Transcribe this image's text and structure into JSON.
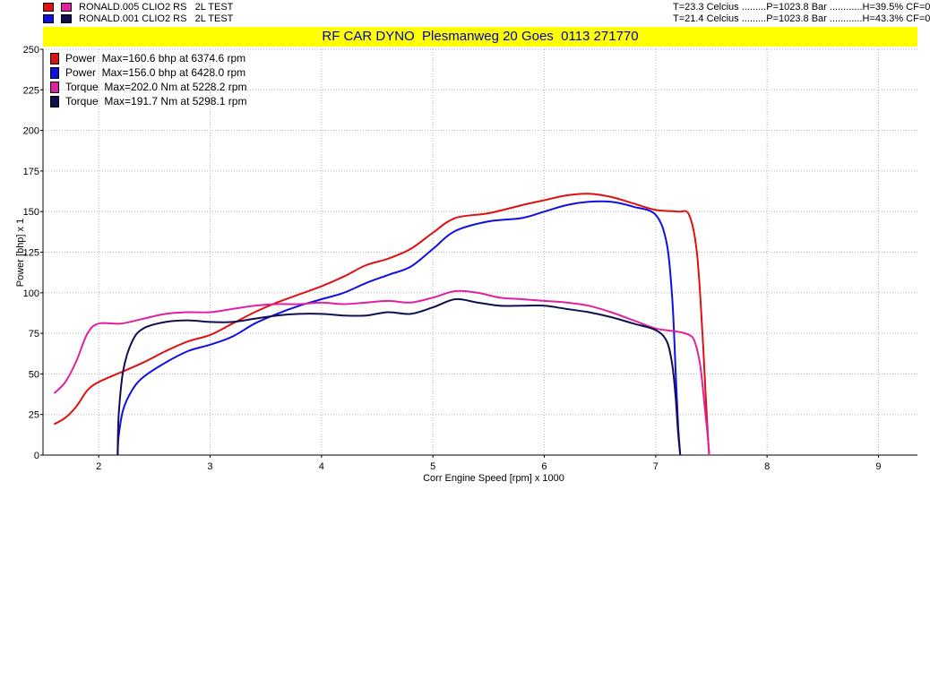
{
  "runs": [
    {
      "file": "RONALD.005 CLIO2 RS   2L TEST",
      "conditions": "T=23.3 Celcius .........P=1023.8 Bar ............H=39.5% CF=0",
      "power_color": "#e01010",
      "torque_color": "#e020a0"
    },
    {
      "file": "RONALD.001 CLIO2 RS   2L TEST",
      "conditions": "T=21.4 Celcius .........P=1023.8 Bar ............H=43.3% CF=0",
      "power_color": "#1010e0",
      "torque_color": "#101050"
    }
  ],
  "chart_data": {
    "type": "line",
    "title": "RF CAR DYNO  Plesmanweg 20 Goes  0113 271770",
    "xlabel": "Corr Engine Speed [rpm] x 1000",
    "ylabel": "Power [bhp] x 1",
    "xlim": [
      1.5,
      9.35
    ],
    "ylim": [
      0,
      250
    ],
    "xticks": [
      "2",
      "3",
      "4",
      "5",
      "6",
      "7",
      "8",
      "9"
    ],
    "yticks": [
      "0",
      "25",
      "50",
      "75",
      "100",
      "125",
      "150",
      "175",
      "200",
      "225",
      "250"
    ],
    "grid": true,
    "legend": {
      "placement": "top-left",
      "entries": [
        {
          "label": "Power  Max=160.6 bhp at 6374.6 rpm",
          "color": "#e01010"
        },
        {
          "label": "Power  Max=156.0 bhp at 6428.0 rpm",
          "color": "#1010e0"
        },
        {
          "label": "Torque  Max=202.0 Nm at 5228.2 rpm",
          "color": "#e020a0"
        },
        {
          "label": "Torque  Max=191.7 Nm at 5298.1 rpm",
          "color": "#101050"
        }
      ]
    },
    "series": [
      {
        "name": "Power  Max=160.6 bhp at 6374.6 rpm",
        "color": "#e01010",
        "x": [
          1.6,
          1.7,
          1.8,
          1.9,
          2.0,
          2.2,
          2.4,
          2.6,
          2.8,
          3.0,
          3.2,
          3.4,
          3.6,
          3.8,
          4.0,
          4.2,
          4.4,
          4.6,
          4.8,
          5.0,
          5.2,
          5.5,
          5.8,
          6.0,
          6.2,
          6.4,
          6.6,
          6.8,
          7.0,
          7.2,
          7.3,
          7.37,
          7.42,
          7.45,
          7.47,
          7.48
        ],
        "y": [
          19,
          23,
          30,
          40,
          45,
          51,
          57,
          64,
          70,
          74,
          81,
          88,
          94,
          99,
          104,
          110,
          117,
          121,
          127,
          137,
          146,
          149,
          154,
          157,
          160,
          161,
          159,
          155,
          151,
          150,
          148,
          125,
          75,
          35,
          10,
          0
        ]
      },
      {
        "name": "Power  Max=156.0 bhp at 6428.0 rpm",
        "color": "#1010e0",
        "x": [
          2.17,
          2.18,
          2.22,
          2.3,
          2.4,
          2.6,
          2.8,
          3.0,
          3.2,
          3.4,
          3.6,
          3.8,
          4.0,
          4.2,
          4.4,
          4.6,
          4.8,
          5.0,
          5.2,
          5.5,
          5.8,
          6.0,
          6.2,
          6.4,
          6.6,
          6.8,
          7.0,
          7.1,
          7.15,
          7.18,
          7.2,
          7.22
        ],
        "y": [
          0,
          12,
          28,
          40,
          48,
          57,
          64,
          68,
          73,
          81,
          87,
          92,
          96,
          100,
          106,
          111,
          116,
          127,
          138,
          144,
          146,
          150,
          154,
          156,
          156,
          153,
          148,
          130,
          95,
          50,
          20,
          0
        ]
      },
      {
        "name": "Torque  Max=202.0 Nm at 5228.2 rpm",
        "color": "#e020a0",
        "x": [
          1.6,
          1.7,
          1.8,
          1.9,
          2.0,
          2.2,
          2.4,
          2.6,
          2.8,
          3.0,
          3.2,
          3.4,
          3.6,
          3.8,
          4.0,
          4.2,
          4.4,
          4.6,
          4.8,
          5.0,
          5.2,
          5.4,
          5.6,
          5.8,
          6.0,
          6.2,
          6.4,
          6.6,
          6.8,
          7.0,
          7.2,
          7.3,
          7.35,
          7.4,
          7.44,
          7.47,
          7.48
        ],
        "y": [
          38,
          45,
          58,
          75,
          81,
          81,
          84,
          87,
          88,
          88,
          90,
          92,
          93,
          93,
          94,
          93,
          94,
          95,
          94,
          97,
          101,
          100,
          97,
          96,
          95,
          94,
          92,
          88,
          83,
          78,
          76,
          74,
          70,
          55,
          30,
          10,
          0
        ]
      },
      {
        "name": "Torque  Max=191.7 Nm at 5298.1 rpm",
        "color": "#101050",
        "x": [
          2.17,
          2.18,
          2.22,
          2.3,
          2.4,
          2.6,
          2.8,
          3.0,
          3.2,
          3.4,
          3.6,
          3.8,
          4.0,
          4.2,
          4.4,
          4.6,
          4.8,
          5.0,
          5.2,
          5.4,
          5.6,
          5.8,
          6.0,
          6.2,
          6.4,
          6.6,
          6.8,
          7.0,
          7.1,
          7.15,
          7.18,
          7.2,
          7.22
        ],
        "y": [
          0,
          25,
          52,
          70,
          78,
          82,
          83,
          82,
          82,
          84,
          86,
          87,
          87,
          86,
          86,
          88,
          87,
          91,
          96,
          94,
          92,
          92,
          92,
          90,
          88,
          85,
          81,
          77,
          70,
          55,
          35,
          15,
          0
        ]
      }
    ]
  }
}
